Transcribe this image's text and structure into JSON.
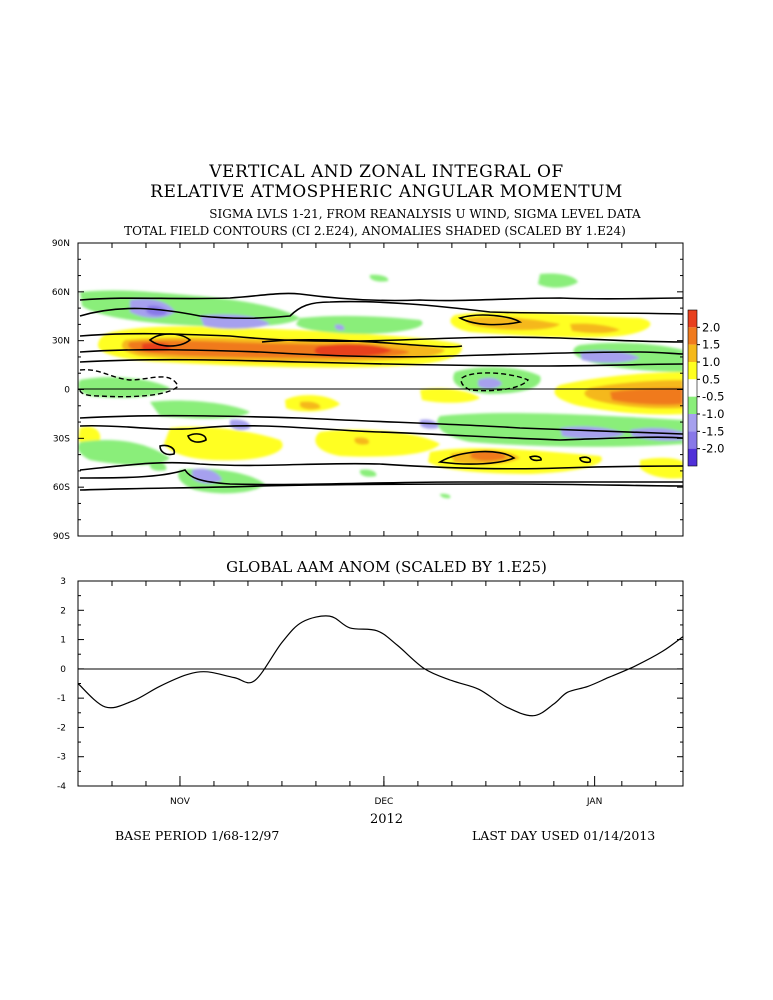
{
  "header": {
    "line1": "VERTICAL AND ZONAL INTEGRAL OF",
    "line2": "RELATIVE ATMOSPHERIC ANGULAR MOMENTUM",
    "line3": "SIGMA LVLS 1-21, FROM REANALYSIS U WIND, SIGMA LEVEL DATA",
    "line4": "TOTAL FIELD CONTOURS (CI 2.E24),  ANOMALIES SHADED (SCALED BY 1.E24)"
  },
  "lower_title": "GLOBAL AAM ANOM (SCALED BY 1.E25)",
  "footer": {
    "year": "2012",
    "base_period": "BASE PERIOD  1/68-12/97",
    "last_day": "LAST DAY USED 01/14/2013"
  },
  "colors": {
    "c_2_0": "#e8401e",
    "c_1_5": "#f07a1e",
    "c_1_0": "#f5b81a",
    "c_0_5": "#ffff20",
    "c_m0_5": "#8aee7a",
    "c_m1_0": "#a6a0ee",
    "c_m1_5": "#8878e8",
    "c_m2_0": "#5030d8"
  },
  "chart_data": [
    {
      "type": "heatmap",
      "title": "VERTICAL AND ZONAL INTEGRAL OF RELATIVE ATMOSPHERIC ANGULAR MOMENTUM",
      "y_ticks": [
        "90N",
        "60N",
        "30N",
        "0",
        "30S",
        "60S",
        "90S"
      ],
      "ylim": [
        -90,
        90
      ],
      "colorbar": {
        "labels": [
          "2.0",
          "1.5",
          "1.0",
          "0.5",
          "-0.5",
          "-1.0",
          "-1.5",
          "-2.0"
        ],
        "values": [
          2.0,
          1.5,
          1.0,
          0.5,
          -0.5,
          -1.0,
          -1.5,
          -2.0
        ]
      },
      "legend_position": "right"
    },
    {
      "type": "line",
      "title": "GLOBAL AAM ANOM (SCALED BY 1.E25)",
      "x_ticks": [
        "NOV",
        "DEC",
        "JAN"
      ],
      "x_tick_dates": [
        "2012-11-01",
        "2012-12-01",
        "2013-01-01"
      ],
      "y_ticks": [
        "3",
        "2",
        "1",
        "0",
        "-1",
        "-2",
        "-3",
        "-4"
      ],
      "ylim": [
        -4,
        3
      ],
      "xlim": [
        "2012-10-17",
        "2013-01-14"
      ],
      "series": [
        {
          "x": [
            "2012-10-17",
            "2012-10-21",
            "2012-10-25",
            "2012-10-29",
            "2012-11-02",
            "2012-11-05",
            "2012-11-09",
            "2012-11-12",
            "2012-11-16",
            "2012-11-19",
            "2012-11-23",
            "2012-11-26",
            "2012-11-30",
            "2012-12-03",
            "2012-12-07",
            "2012-12-11",
            "2012-12-15",
            "2012-12-19",
            "2012-12-23",
            "2012-12-26",
            "2012-12-28",
            "2012-12-31",
            "2013-01-03",
            "2013-01-07",
            "2013-01-11",
            "2013-01-14"
          ],
          "values": [
            -0.5,
            -1.3,
            -1.1,
            -0.6,
            -0.2,
            -0.1,
            -0.3,
            -0.4,
            0.9,
            1.6,
            1.8,
            1.4,
            1.3,
            0.8,
            0.0,
            -0.4,
            -0.7,
            -1.3,
            -1.6,
            -1.2,
            -0.8,
            -0.6,
            -0.3,
            0.1,
            0.6,
            1.1
          ]
        }
      ]
    }
  ]
}
